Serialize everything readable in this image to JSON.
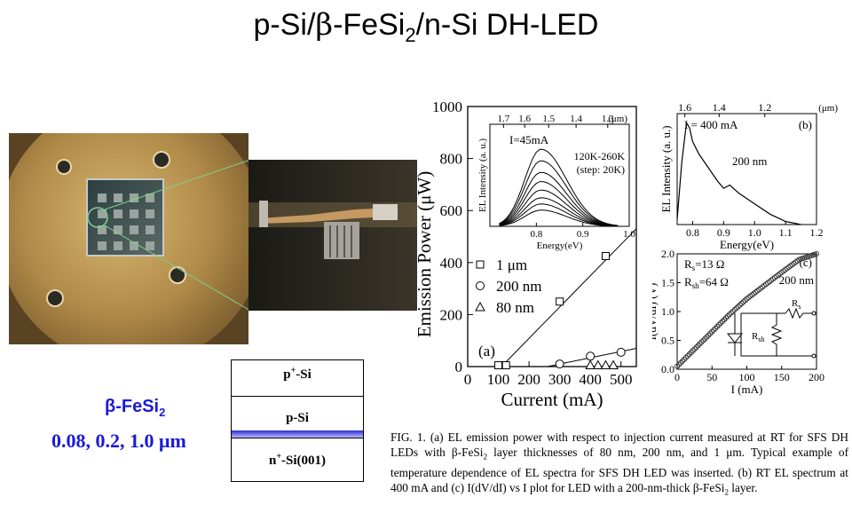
{
  "title": {
    "prefix": "p-Si/",
    "beta": "β",
    "mid": "-FeSi",
    "sub": "2",
    "suffix": "/n-Si DH-LED"
  },
  "stack": {
    "layer1_base": "p",
    "layer1_sup": "+",
    "layer1_rest": "-Si",
    "layer2": "p-Si",
    "layer3_base": "n",
    "layer3_sup": "+",
    "layer3_rest": "-Si(001)"
  },
  "labels": {
    "fesi": "β-FeSi",
    "fesi_sub": "2",
    "thickness": "0.08, 0.2, 1.0 μm"
  },
  "caption": {
    "p1": "FIG. 1. (a) EL emission power with respect to injection current measured at RT for SFS DH LEDs with β-FeSi",
    "p1_sub": "2",
    "p2": " layer thicknesses of 80 nm, 200 nm, and 1  μm. Typical example of temperature dependence of EL spectra for SFS DH LED was inserted. (b) RT EL spectrum at 400 mA and (c) I(dV/dI) vs I plot for LED with a 200-nm-thick β-FeSi",
    "p2_sub": "2",
    "p3": " layer."
  },
  "chart_data": [
    {
      "type": "scatter",
      "panel": "(a)",
      "xlabel": "Current (mA)",
      "ylabel": "Emission Power (μW)",
      "xlim": [
        0,
        550
      ],
      "ylim": [
        0,
        1000
      ],
      "xticks": [
        0,
        100,
        200,
        300,
        400,
        500
      ],
      "yticks": [
        0,
        200,
        400,
        600,
        800,
        1000
      ],
      "series": [
        {
          "name": "1 μm",
          "marker": "square",
          "x": [
            100,
            125,
            300,
            450
          ],
          "y": [
            5,
            5,
            250,
            425
          ]
        },
        {
          "name": "200 nm",
          "marker": "circle",
          "x": [
            300,
            400,
            500
          ],
          "y": [
            10,
            40,
            55
          ]
        },
        {
          "name": "80 nm",
          "marker": "triangle",
          "x": [
            400,
            425,
            450,
            475
          ],
          "y": [
            5,
            5,
            5,
            5
          ]
        }
      ],
      "fit_lines": [
        {
          "x": [
            110,
            550
          ],
          "y": [
            0,
            530
          ]
        },
        {
          "x": [
            260,
            550
          ],
          "y": [
            0,
            70
          ]
        }
      ],
      "inset": {
        "type": "line",
        "xlabel": "Energy(eV)",
        "ylabel": "EL Intensity (a. u.)",
        "top_axis_label": "(μm)",
        "top_ticks": [
          "1.7",
          "1.6",
          "1.5",
          "1.4",
          "1.3"
        ],
        "xticks": [
          "0.8",
          "0.9",
          "1.0"
        ],
        "xlim": [
          0.7,
          1.0
        ],
        "current_label": "I=45mA",
        "temp_label": "120K-260K",
        "step_label": "(step: 20K)",
        "curve_peaks": [
          1.0,
          0.85,
          0.7,
          0.58,
          0.47,
          0.37,
          0.29,
          0.21
        ]
      }
    },
    {
      "type": "line",
      "panel": "(b)",
      "xlabel": "Energy(eV)",
      "ylabel": "EL Intensity (a. u.)",
      "top_axis_label": "(μm)",
      "top_ticks": [
        "1.6",
        "1.4",
        "1.2"
      ],
      "xticks": [
        "0.8",
        "0.9",
        "1.0",
        "1.1",
        "1.2"
      ],
      "xlim": [
        0.75,
        1.2
      ],
      "current_label": "I = 400 mA",
      "thickness_label": "200 nm",
      "x": [
        0.75,
        0.765,
        0.78,
        0.79,
        0.8,
        0.82,
        0.85,
        0.88,
        0.9,
        0.92,
        0.95,
        1.0,
        1.05,
        1.1,
        1.15
      ],
      "y": [
        0.05,
        0.6,
        0.98,
        0.93,
        0.8,
        0.68,
        0.55,
        0.42,
        0.35,
        0.38,
        0.3,
        0.2,
        0.1,
        0.03,
        0.0
      ]
    },
    {
      "type": "scatter",
      "panel": "(c)",
      "xlabel": "I (mA)",
      "ylabel": "I(dV/dI) (V)",
      "xlim": [
        0,
        200
      ],
      "ylim": [
        0,
        2.0
      ],
      "xticks": [
        "0",
        "50",
        "100",
        "150",
        "200"
      ],
      "yticks": [
        "0.0",
        "0.5",
        "1.0",
        "1.5",
        "2.0"
      ],
      "rs_label": "R",
      "rs_sub": "s",
      "rs_value": "=13 Ω",
      "rsh_label": "R",
      "rsh_sub": "sh",
      "rsh_value": "=64 Ω",
      "thickness_label": "200 nm",
      "x": [
        0,
        25,
        50,
        75,
        100,
        125,
        150,
        175,
        200
      ],
      "y": [
        0.05,
        0.35,
        0.65,
        0.95,
        1.22,
        1.45,
        1.68,
        1.9,
        2.0
      ]
    }
  ]
}
